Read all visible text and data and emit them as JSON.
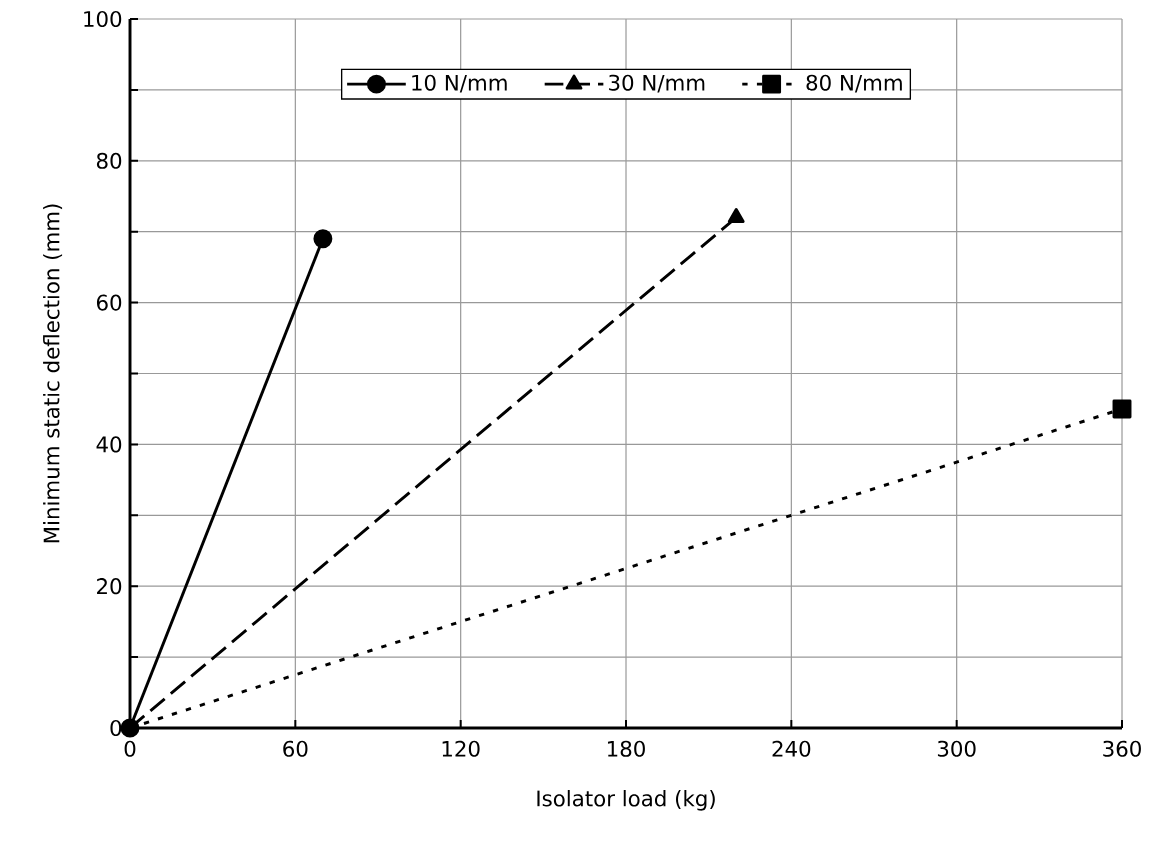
{
  "chart_data": {
    "type": "line",
    "xlabel": "Isolator load (kg)",
    "ylabel": "Minimum static deflection (mm)",
    "xlim": [
      0,
      360
    ],
    "xticks": [
      0,
      60,
      120,
      180,
      240,
      300,
      360
    ],
    "ylim": [
      0,
      100
    ],
    "yticks": [
      0,
      {
        "value": 10,
        "label": null
      },
      20,
      {
        "value": 30,
        "label": null
      },
      40,
      {
        "value": 50,
        "label": null
      },
      60,
      {
        "value": 70,
        "label": null
      },
      80,
      {
        "value": 90,
        "label": null
      },
      100
    ],
    "grid": true,
    "legend": "top",
    "series": [
      {
        "name": "10 N/mm",
        "color": "#000000",
        "x": [
          0,
          70
        ],
        "values": [
          0,
          69
        ],
        "marker": "circle",
        "line_style": "solid"
      },
      {
        "name": "30 N/mm",
        "color": "#000000",
        "x": [
          0,
          220
        ],
        "values": [
          0,
          72
        ],
        "marker": "triangle",
        "line_style": "dashed"
      },
      {
        "name": "80 N/mm",
        "color": "#000000",
        "x": [
          0,
          360
        ],
        "values": [
          0,
          45
        ],
        "marker": "square",
        "line_style": "dotted"
      }
    ]
  }
}
